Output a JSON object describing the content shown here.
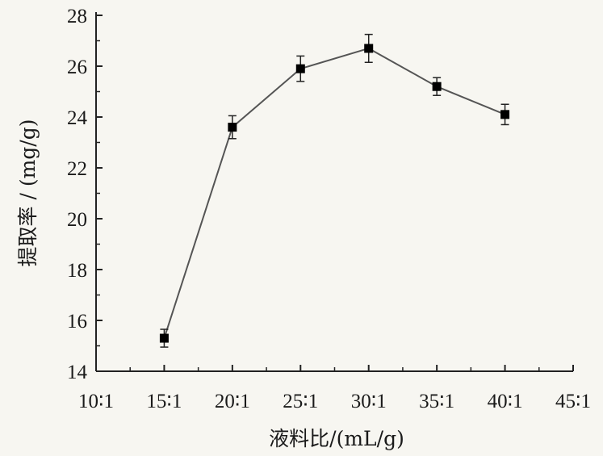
{
  "chart_data": {
    "type": "line",
    "title": "",
    "xlabel": "液料比/(mL/g)",
    "ylabel": "提取率 / (mg/g)",
    "categories": [
      "10∶1",
      "15∶1",
      "20∶1",
      "25∶1",
      "30∶1",
      "35∶1",
      "40∶1",
      "45∶1"
    ],
    "x_ticks": [
      10,
      15,
      20,
      25,
      30,
      35,
      40,
      45
    ],
    "y_ticks": [
      14,
      16,
      18,
      20,
      22,
      24,
      26,
      28
    ],
    "xlim": [
      10,
      45
    ],
    "ylim": [
      14,
      28
    ],
    "grid": false,
    "series": [
      {
        "x": [
          15,
          20,
          25,
          30,
          35,
          40
        ],
        "values": [
          15.3,
          23.6,
          25.9,
          26.7,
          25.2,
          24.1
        ],
        "error": [
          0.35,
          0.45,
          0.5,
          0.55,
          0.35,
          0.4
        ],
        "marker": "square",
        "line_color": "#555555",
        "marker_color": "#000000"
      }
    ]
  }
}
